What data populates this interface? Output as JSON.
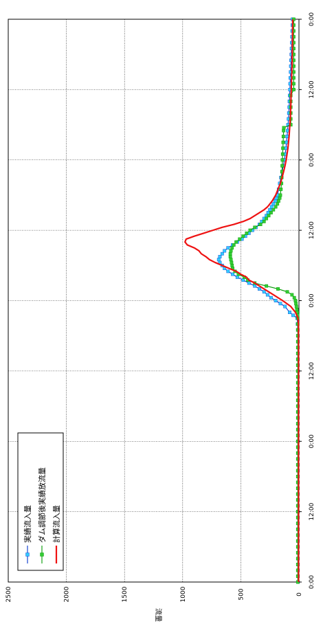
{
  "chart_data": {
    "type": "line",
    "orientation": "rotated-90-clockwise",
    "ylabel": "流量",
    "ylim": [
      0,
      2500
    ],
    "y_ticks": [
      0,
      500,
      1000,
      1500,
      2000,
      2500
    ],
    "x_ticks": [
      "0:00",
      "12:00",
      "0:00",
      "12:00",
      "0:00",
      "12:00",
      "0:00",
      "12:00",
      "0:00"
    ],
    "xlim_hours": [
      0,
      96
    ],
    "grid": true,
    "legend_position": "top-left",
    "series": [
      {
        "name": "実績流入量",
        "color": "#0033cc",
        "marker_color": "#33ccff",
        "marker": "square",
        "points": [
          [
            0,
            8
          ],
          [
            1,
            8
          ],
          [
            2,
            8
          ],
          [
            3,
            8
          ],
          [
            4,
            8
          ],
          [
            5,
            8
          ],
          [
            6,
            8
          ],
          [
            7,
            8
          ],
          [
            8,
            8
          ],
          [
            9,
            8
          ],
          [
            10,
            8
          ],
          [
            11,
            8
          ],
          [
            12,
            8
          ],
          [
            13,
            8
          ],
          [
            14,
            8
          ],
          [
            15,
            8
          ],
          [
            16,
            8
          ],
          [
            17,
            8
          ],
          [
            18,
            8
          ],
          [
            19,
            8
          ],
          [
            20,
            8
          ],
          [
            21,
            8
          ],
          [
            22,
            8
          ],
          [
            23,
            8
          ],
          [
            24,
            8
          ],
          [
            25,
            8
          ],
          [
            26,
            8
          ],
          [
            27,
            8
          ],
          [
            28,
            8
          ],
          [
            29,
            8
          ],
          [
            30,
            8
          ],
          [
            31,
            8
          ],
          [
            32,
            8
          ],
          [
            33,
            8
          ],
          [
            34,
            8
          ],
          [
            35,
            8
          ],
          [
            36,
            8
          ],
          [
            37,
            8
          ],
          [
            38,
            8
          ],
          [
            39,
            8
          ],
          [
            40,
            8
          ],
          [
            41,
            8
          ],
          [
            42,
            8
          ],
          [
            43,
            10
          ],
          [
            44,
            12
          ],
          [
            45,
            15
          ],
          [
            45.5,
            50
          ],
          [
            46,
            80
          ],
          [
            47,
            120
          ],
          [
            47.5,
            160
          ],
          [
            48,
            200
          ],
          [
            48.5,
            240
          ],
          [
            49,
            270
          ],
          [
            49.5,
            300
          ],
          [
            50,
            340
          ],
          [
            50.5,
            380
          ],
          [
            51,
            430
          ],
          [
            51.5,
            480
          ],
          [
            52,
            530
          ],
          [
            52.5,
            570
          ],
          [
            53,
            610
          ],
          [
            53.5,
            640
          ],
          [
            54,
            660
          ],
          [
            54.5,
            680
          ],
          [
            55,
            690
          ],
          [
            55.5,
            680
          ],
          [
            56,
            660
          ],
          [
            56.5,
            640
          ],
          [
            57,
            610
          ],
          [
            57.5,
            570
          ],
          [
            58,
            530
          ],
          [
            58.5,
            490
          ],
          [
            59,
            460
          ],
          [
            59.5,
            430
          ],
          [
            60,
            400
          ],
          [
            60.5,
            370
          ],
          [
            61,
            340
          ],
          [
            61.5,
            320
          ],
          [
            62,
            300
          ],
          [
            62.5,
            280
          ],
          [
            63,
            265
          ],
          [
            63.5,
            250
          ],
          [
            64,
            235
          ],
          [
            64.5,
            220
          ],
          [
            65,
            205
          ],
          [
            65.5,
            195
          ],
          [
            66,
            185
          ],
          [
            67,
            175
          ],
          [
            68,
            165
          ],
          [
            69,
            155
          ],
          [
            70,
            145
          ],
          [
            71,
            135
          ],
          [
            72,
            125
          ],
          [
            73,
            118
          ],
          [
            74,
            112
          ],
          [
            75,
            107
          ],
          [
            76,
            102
          ],
          [
            77,
            98
          ],
          [
            78,
            94
          ],
          [
            79,
            90
          ],
          [
            80,
            87
          ],
          [
            81,
            84
          ],
          [
            82,
            82
          ],
          [
            83,
            80
          ],
          [
            84,
            78
          ],
          [
            85,
            76
          ],
          [
            86,
            74
          ],
          [
            87,
            72
          ],
          [
            88,
            70
          ],
          [
            89,
            68
          ],
          [
            90,
            66
          ],
          [
            91,
            64
          ],
          [
            92,
            62
          ],
          [
            93,
            60
          ],
          [
            94,
            58
          ],
          [
            95,
            56
          ],
          [
            96,
            55
          ]
        ]
      },
      {
        "name": "ダム調節後実績放流量",
        "color": "#009900",
        "marker_color": "#33cc33",
        "marker": "square",
        "points": [
          [
            0,
            10
          ],
          [
            1,
            10
          ],
          [
            2,
            10
          ],
          [
            3,
            10
          ],
          [
            4,
            10
          ],
          [
            5,
            10
          ],
          [
            6,
            10
          ],
          [
            7,
            10
          ],
          [
            8,
            10
          ],
          [
            9,
            10
          ],
          [
            10,
            10
          ],
          [
            11,
            10
          ],
          [
            12,
            10
          ],
          [
            13,
            10
          ],
          [
            14,
            10
          ],
          [
            15,
            10
          ],
          [
            16,
            10
          ],
          [
            17,
            10
          ],
          [
            18,
            10
          ],
          [
            19,
            10
          ],
          [
            20,
            10
          ],
          [
            21,
            10
          ],
          [
            22,
            10
          ],
          [
            23,
            10
          ],
          [
            24,
            10
          ],
          [
            25,
            10
          ],
          [
            26,
            10
          ],
          [
            27,
            10
          ],
          [
            28,
            10
          ],
          [
            29,
            10
          ],
          [
            30,
            10
          ],
          [
            31,
            10
          ],
          [
            32,
            10
          ],
          [
            33,
            10
          ],
          [
            34,
            10
          ],
          [
            35,
            10
          ],
          [
            36,
            10
          ],
          [
            37,
            10
          ],
          [
            38,
            10
          ],
          [
            39,
            10
          ],
          [
            40,
            10
          ],
          [
            41,
            10
          ],
          [
            42,
            10
          ],
          [
            43,
            10
          ],
          [
            44,
            10
          ],
          [
            45,
            10
          ],
          [
            45.5,
            12
          ],
          [
            46,
            15
          ],
          [
            46.5,
            18
          ],
          [
            47,
            22
          ],
          [
            47.5,
            26
          ],
          [
            48,
            30
          ],
          [
            48.5,
            40
          ],
          [
            49,
            60
          ],
          [
            49.5,
            100
          ],
          [
            50,
            180
          ],
          [
            50.5,
            280
          ],
          [
            51,
            380
          ],
          [
            51.5,
            440
          ],
          [
            52,
            470
          ],
          [
            52.5,
            520
          ],
          [
            53,
            550
          ],
          [
            53.5,
            570
          ],
          [
            54,
            575
          ],
          [
            54.5,
            580
          ],
          [
            55,
            585
          ],
          [
            55.5,
            590
          ],
          [
            56,
            590
          ],
          [
            56.5,
            585
          ],
          [
            57,
            575
          ],
          [
            57.5,
            560
          ],
          [
            58,
            540
          ],
          [
            58.5,
            510
          ],
          [
            59,
            480
          ],
          [
            59.5,
            450
          ],
          [
            60,
            420
          ],
          [
            60.5,
            380
          ],
          [
            61,
            330
          ],
          [
            61.5,
            300
          ],
          [
            62,
            280
          ],
          [
            62.5,
            260
          ],
          [
            63,
            240
          ],
          [
            63.5,
            220
          ],
          [
            64,
            200
          ],
          [
            64.5,
            185
          ],
          [
            65,
            175
          ],
          [
            65.5,
            165
          ],
          [
            66,
            160
          ],
          [
            67,
            155
          ],
          [
            68,
            150
          ],
          [
            69,
            148
          ],
          [
            70,
            146
          ],
          [
            71,
            144
          ],
          [
            72,
            142
          ],
          [
            73,
            140
          ],
          [
            74,
            138
          ],
          [
            75,
            136
          ],
          [
            76,
            134
          ],
          [
            77,
            132
          ],
          [
            77.5,
            130
          ],
          [
            78,
            70
          ],
          [
            79,
            70
          ],
          [
            80,
            70
          ],
          [
            81,
            70
          ],
          [
            82,
            70
          ],
          [
            83,
            70
          ],
          [
            84,
            45
          ],
          [
            85,
            45
          ],
          [
            86,
            45
          ],
          [
            87,
            45
          ],
          [
            88,
            45
          ],
          [
            89,
            45
          ],
          [
            90,
            45
          ],
          [
            91,
            45
          ],
          [
            92,
            45
          ],
          [
            93,
            45
          ],
          [
            94,
            45
          ],
          [
            95,
            45
          ],
          [
            96,
            45
          ]
        ]
      },
      {
        "name": "計算流入量",
        "color": "#ee1111",
        "marker": "none",
        "points": [
          [
            0,
            3
          ],
          [
            10,
            3
          ],
          [
            20,
            3
          ],
          [
            30,
            3
          ],
          [
            40,
            3
          ],
          [
            44,
            4
          ],
          [
            45,
            8
          ],
          [
            46,
            30
          ],
          [
            47,
            70
          ],
          [
            48,
            140
          ],
          [
            49,
            220
          ],
          [
            50,
            300
          ],
          [
            51,
            380
          ],
          [
            51.5,
            430
          ],
          [
            52,
            450
          ],
          [
            52.5,
            500
          ],
          [
            53,
            540
          ],
          [
            53.5,
            600
          ],
          [
            54,
            660
          ],
          [
            54.5,
            720
          ],
          [
            55,
            770
          ],
          [
            55.5,
            800
          ],
          [
            56,
            840
          ],
          [
            56.5,
            860
          ],
          [
            57,
            900
          ],
          [
            57.5,
            960
          ],
          [
            58,
            980
          ],
          [
            58.5,
            970
          ],
          [
            59,
            900
          ],
          [
            59.5,
            820
          ],
          [
            60,
            740
          ],
          [
            60.5,
            660
          ],
          [
            61,
            560
          ],
          [
            61.5,
            480
          ],
          [
            62,
            420
          ],
          [
            62.5,
            380
          ],
          [
            63,
            340
          ],
          [
            63.5,
            300
          ],
          [
            64,
            270
          ],
          [
            65,
            230
          ],
          [
            66,
            200
          ],
          [
            67,
            180
          ],
          [
            68,
            160
          ],
          [
            69,
            145
          ],
          [
            70,
            132
          ],
          [
            71,
            120
          ],
          [
            72,
            110
          ],
          [
            74,
            95
          ],
          [
            76,
            85
          ],
          [
            78,
            78
          ],
          [
            80,
            72
          ],
          [
            84,
            66
          ],
          [
            88,
            60
          ],
          [
            92,
            56
          ],
          [
            96,
            54
          ]
        ]
      }
    ]
  }
}
